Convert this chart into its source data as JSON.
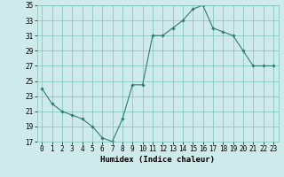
{
  "x": [
    0,
    1,
    2,
    3,
    4,
    5,
    6,
    7,
    8,
    9,
    10,
    11,
    12,
    13,
    14,
    15,
    16,
    17,
    18,
    19,
    20,
    21,
    22,
    23
  ],
  "y": [
    24,
    22,
    21,
    20.5,
    20,
    19,
    17.5,
    17,
    20,
    24.5,
    24.5,
    31,
    31,
    32,
    33,
    34.5,
    35,
    32,
    31.5,
    31,
    29,
    27,
    27,
    27
  ],
  "line_color": "#2e7d6e",
  "marker": "D",
  "marker_size": 1.8,
  "bg_color": "#ceeaea",
  "grid_color": "#7cc4b8",
  "xlabel": "Humidex (Indice chaleur)",
  "ylim": [
    17,
    35
  ],
  "yticks": [
    17,
    19,
    21,
    23,
    25,
    27,
    29,
    31,
    33,
    35
  ],
  "xticks": [
    0,
    1,
    2,
    3,
    4,
    5,
    6,
    7,
    8,
    9,
    10,
    11,
    12,
    13,
    14,
    15,
    16,
    17,
    18,
    19,
    20,
    21,
    22,
    23
  ],
  "xlabel_fontsize": 6.5,
  "tick_fontsize": 5.5
}
